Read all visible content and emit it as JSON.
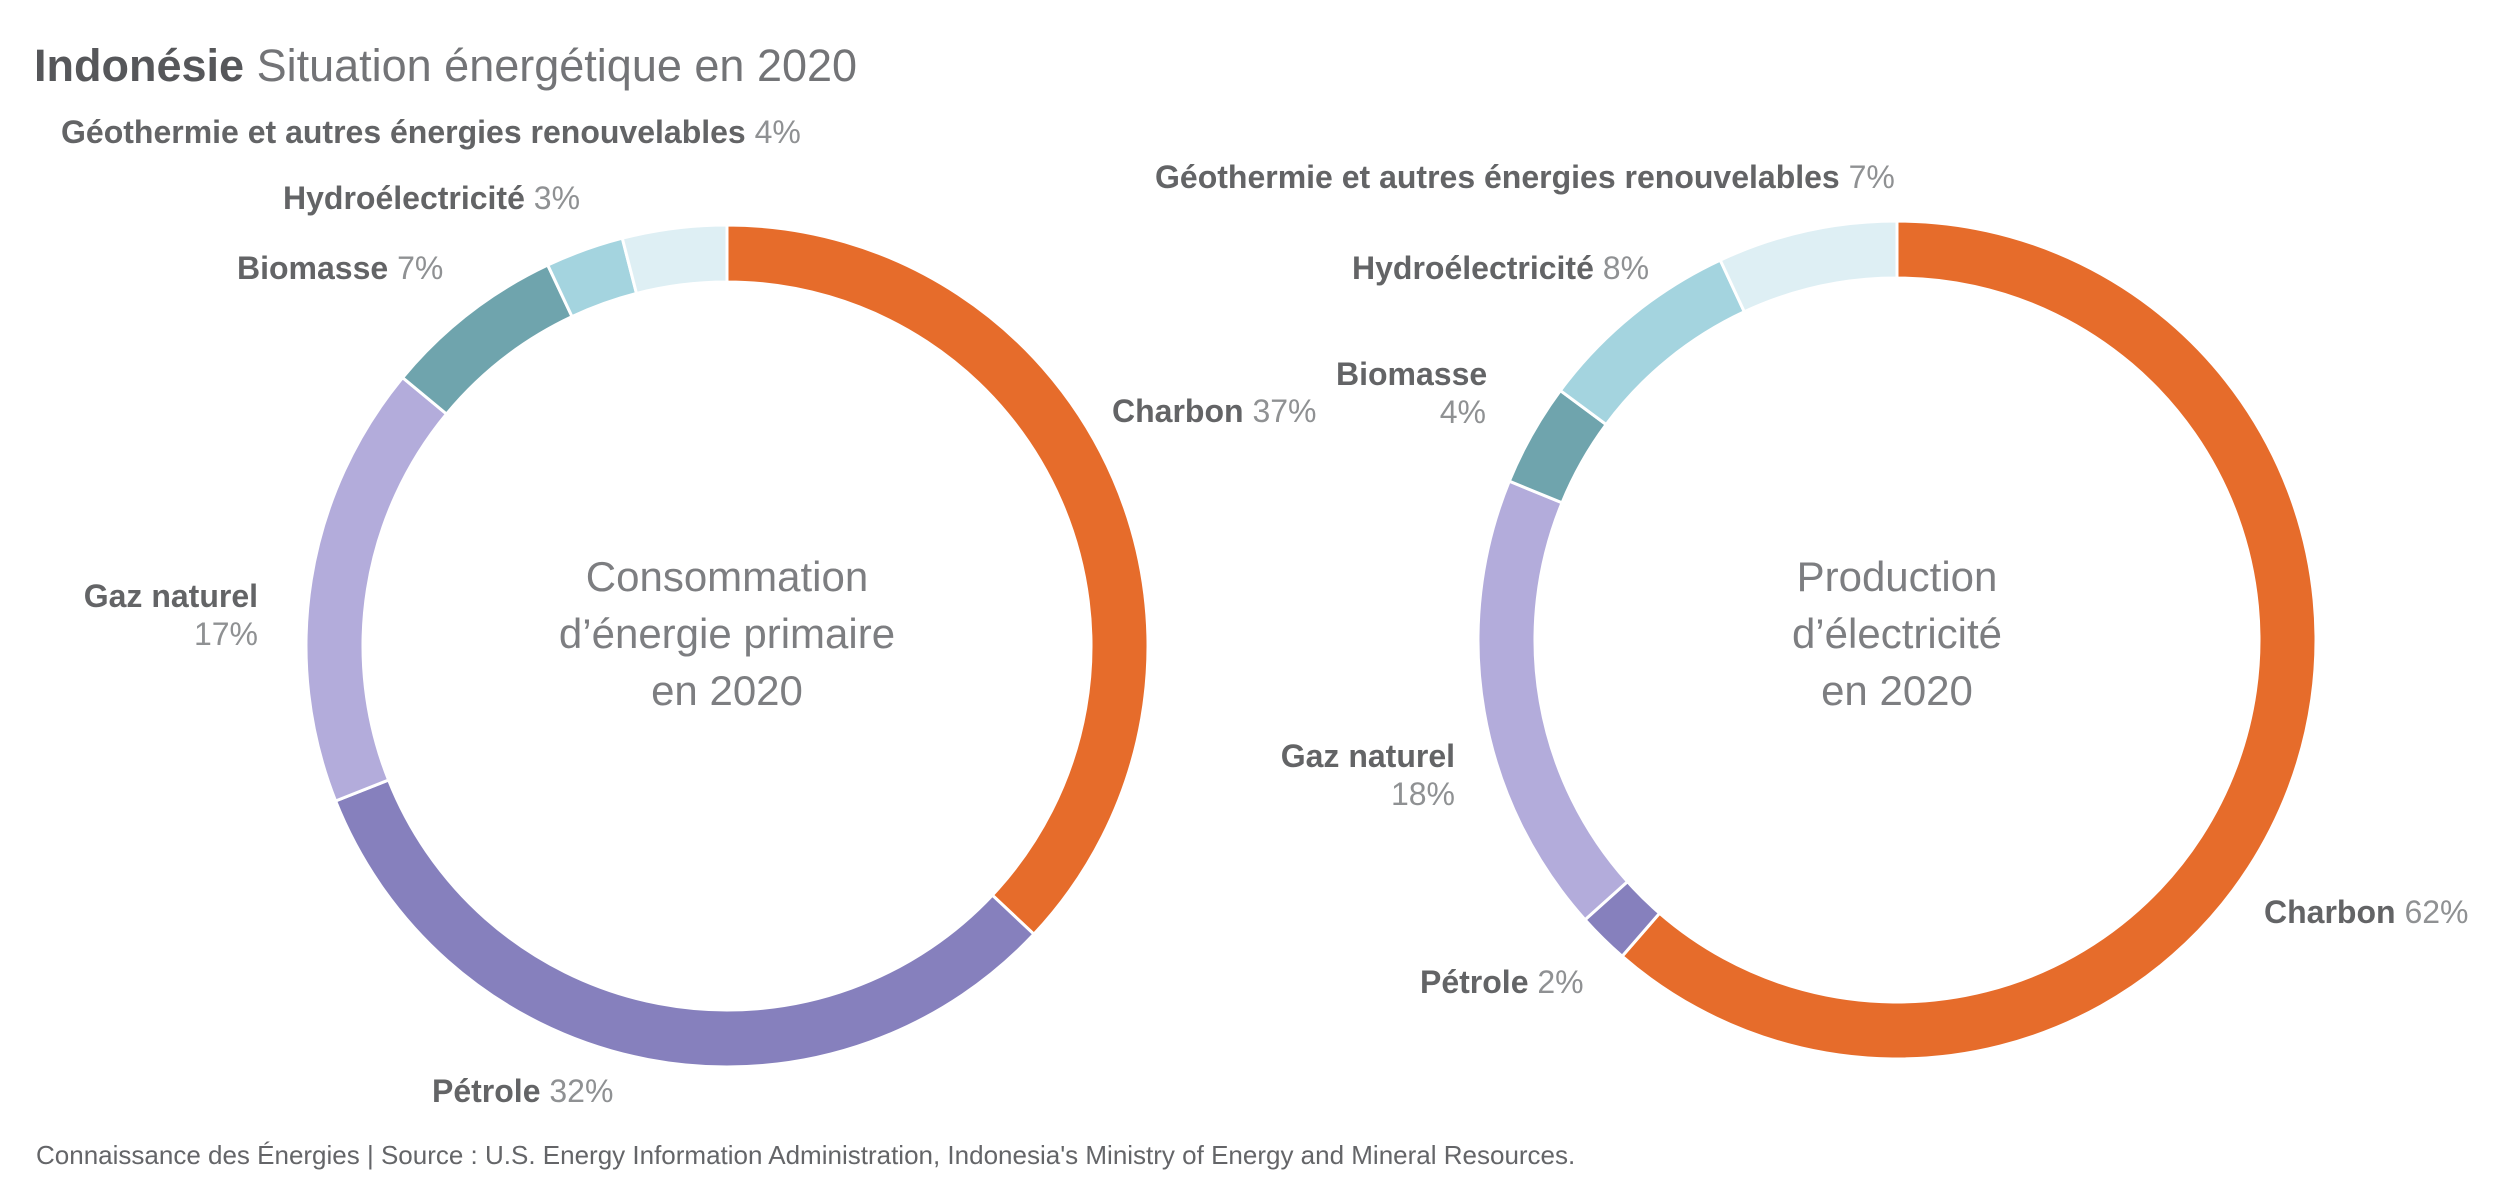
{
  "header": {
    "title_bold": "Indonésie",
    "title_rest": "Situation énergétique en 2020"
  },
  "footer": {
    "credit": "Connaissance des Énergies | Source : U.S. Energy Information Administration, Indonesia's Ministry of Energy and Mineral Resources."
  },
  "chart_data": [
    {
      "type": "pie",
      "subtype": "donut",
      "title": "Consommation d’énergie primaire en 2020",
      "center_lines": [
        "Consommation",
        "d’énergie primaire",
        "en 2020"
      ],
      "unit": "%",
      "start_angle_deg": 0,
      "direction": "clockwise",
      "slices": [
        {
          "label": "Charbon",
          "value": 37,
          "pct": "37%",
          "color": "#E66C2B"
        },
        {
          "label": "Pétrole",
          "value": 32,
          "pct": "32%",
          "color": "#8680BD"
        },
        {
          "label": "Gaz naturel",
          "value": 17,
          "pct": "17%",
          "color": "#B3ACDB"
        },
        {
          "label": "Biomasse",
          "value": 7,
          "pct": "7%",
          "color": "#6FA4AD"
        },
        {
          "label": "Hydroélectricité",
          "value": 3,
          "pct": "3%",
          "color": "#A4D4DF"
        },
        {
          "label": "Géothermie et autres énergies renouvelables",
          "value": 4,
          "pct": "4%",
          "color": "#DEEFF4"
        }
      ]
    },
    {
      "type": "pie",
      "subtype": "donut",
      "title": "Production d’électricité en 2020",
      "center_lines": [
        "Production",
        "d’électricité",
        "en 2020"
      ],
      "unit": "%",
      "start_angle_deg": 0,
      "direction": "clockwise",
      "slices": [
        {
          "label": "Charbon",
          "value": 62,
          "pct": "62%",
          "color": "#E66C2B"
        },
        {
          "label": "Pétrole",
          "value": 2,
          "pct": "2%",
          "color": "#8680BD"
        },
        {
          "label": "Gaz naturel",
          "value": 18,
          "pct": "18%",
          "color": "#B3ACDB"
        },
        {
          "label": "Biomasse",
          "value": 4,
          "pct": "4%",
          "color": "#6FA4AD"
        },
        {
          "label": "Hydroélectricité",
          "value": 8,
          "pct": "8%",
          "color": "#A4D4DF"
        },
        {
          "label": "Géothermie et autres énergies renouvelables",
          "value": 7,
          "pct": "7%",
          "color": "#DEEFF4"
        }
      ]
    }
  ]
}
